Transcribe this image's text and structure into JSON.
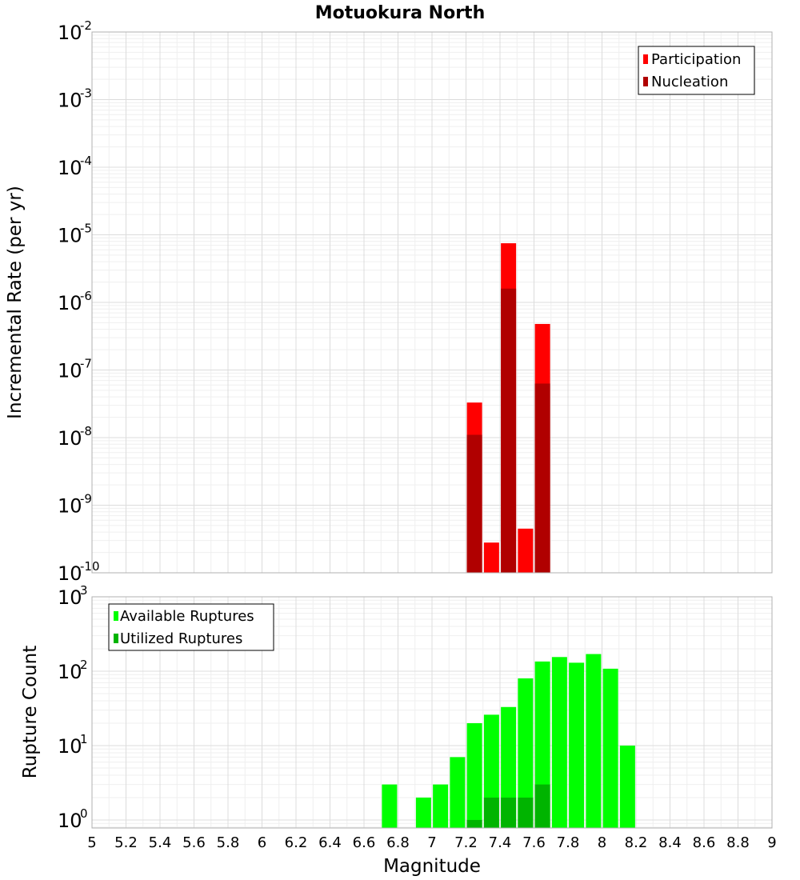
{
  "chart_data": [
    {
      "type": "bar",
      "title": "Motuokura North",
      "xlabel": "",
      "ylabel": "Incremental Rate (per yr)",
      "yscale": "log",
      "ylim": [
        1e-10,
        0.01
      ],
      "xlim": [
        5,
        9
      ],
      "grid": true,
      "legend_position": "top-right",
      "x_ticks": [
        "5",
        "5.2",
        "5.4",
        "5.6",
        "5.8",
        "6",
        "6.2",
        "6.4",
        "6.6",
        "6.8",
        "7",
        "7.2",
        "7.4",
        "7.6",
        "7.8",
        "8",
        "8.2",
        "8.4",
        "8.6",
        "8.8",
        "9"
      ],
      "y_ticks": [
        {
          "base": "10",
          "exp": "-10",
          "value": 1e-10
        },
        {
          "base": "10",
          "exp": "-9",
          "value": 1e-09
        },
        {
          "base": "10",
          "exp": "-8",
          "value": 1e-08
        },
        {
          "base": "10",
          "exp": "-7",
          "value": 1e-07
        },
        {
          "base": "10",
          "exp": "-6",
          "value": 1e-06
        },
        {
          "base": "10",
          "exp": "-5",
          "value": 1e-05
        },
        {
          "base": "10",
          "exp": "-4",
          "value": 0.0001
        },
        {
          "base": "10",
          "exp": "-3",
          "value": 0.001
        },
        {
          "base": "10",
          "exp": "-2",
          "value": 0.01
        }
      ],
      "series": [
        {
          "name": "Participation",
          "color": "#ff0000",
          "x": [
            7.25,
            7.35,
            7.45,
            7.55,
            7.65
          ],
          "values": [
            3.3e-08,
            2.8e-10,
            7.5e-06,
            4.5e-10,
            4.8e-07
          ]
        },
        {
          "name": "Nucleation",
          "color": "#b00000",
          "x": [
            7.25,
            7.35,
            7.45,
            7.55,
            7.65
          ],
          "values": [
            1.1e-08,
            1e-10,
            1.6e-06,
            1e-10,
            6.3e-08
          ]
        }
      ]
    },
    {
      "type": "bar",
      "title": "",
      "xlabel": "Magnitude",
      "ylabel": "Rupture Count",
      "yscale": "log",
      "ylim": [
        0.78,
        1000
      ],
      "xlim": [
        5,
        9
      ],
      "grid": true,
      "legend_position": "top-left",
      "x_ticks": [
        "5",
        "5.2",
        "5.4",
        "5.6",
        "5.8",
        "6",
        "6.2",
        "6.4",
        "6.6",
        "6.8",
        "7",
        "7.2",
        "7.4",
        "7.6",
        "7.8",
        "8",
        "8.2",
        "8.4",
        "8.6",
        "8.8",
        "9"
      ],
      "y_ticks": [
        {
          "base": "10",
          "exp": "0",
          "value": 1
        },
        {
          "base": "10",
          "exp": "1",
          "value": 10
        },
        {
          "base": "10",
          "exp": "2",
          "value": 100
        },
        {
          "base": "10",
          "exp": "3",
          "value": 1000
        }
      ],
      "series": [
        {
          "name": "Available Ruptures",
          "color": "#00ff00",
          "x": [
            6.75,
            6.95,
            7.05,
            7.15,
            7.25,
            7.35,
            7.45,
            7.55,
            7.65,
            7.75,
            7.85,
            7.95,
            8.05,
            8.15
          ],
          "values": [
            3,
            2,
            3,
            7,
            20,
            26,
            33,
            80,
            135,
            155,
            130,
            170,
            108,
            10
          ]
        },
        {
          "name": "Utilized Ruptures",
          "color": "#00b400",
          "x": [
            7.25,
            7.35,
            7.45,
            7.55,
            7.65
          ],
          "values": [
            1,
            2,
            2,
            2,
            3
          ]
        }
      ]
    }
  ]
}
